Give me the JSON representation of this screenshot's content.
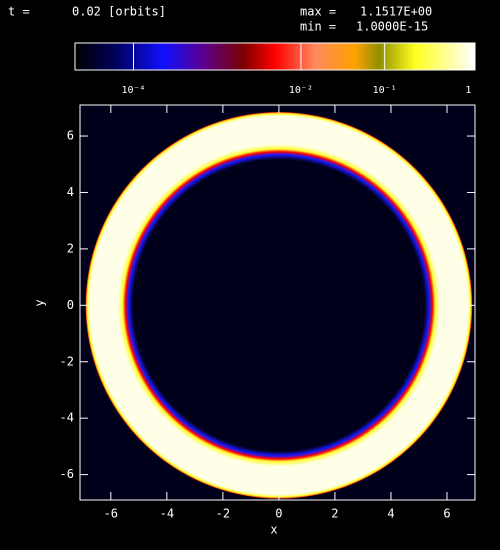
{
  "chart_data": {
    "type": "image",
    "time_label": "t =",
    "time": "0.02 [orbits]",
    "max_label": "max =",
    "max": "1.1517E+00",
    "min_label": "min =",
    "min": "1.0000E-15",
    "xlabel": "x",
    "ylabel": "y",
    "xlim": [
      -7.1,
      7.0
    ],
    "ylim": [
      -6.9,
      7.1
    ],
    "xticks": [
      -6,
      -4,
      -2,
      0,
      2,
      4,
      6
    ],
    "yticks": [
      -6,
      -4,
      -2,
      0,
      2,
      4,
      6
    ],
    "ring": {
      "center": [
        0,
        0
      ],
      "inner_radius": 5.5,
      "outer_radius": 6.9
    },
    "colorbar_lim": [
      2e-05,
      1.2
    ],
    "colorbar_log": true,
    "colorbar_ticks": [
      {
        "value": 0.0001,
        "label": "10⁻⁴"
      },
      {
        "value": 0.01,
        "label": "10⁻²"
      },
      {
        "value": 0.1,
        "label": "10⁻¹"
      },
      1
    ]
  }
}
